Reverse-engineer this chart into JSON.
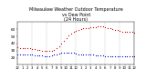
{
  "title": "Milwaukee Weather Outdoor Temperature\nvs Dew Point\n(24 Hours)",
  "title_fontsize": 3.5,
  "background_color": "#ffffff",
  "grid_color": "#999999",
  "temp_color": "#cc0000",
  "dew_color": "#0000cc",
  "xlim": [
    0,
    24
  ],
  "ylim": [
    10,
    70
  ],
  "yticks": [
    20,
    30,
    40,
    50,
    60
  ],
  "ytick_labels": [
    "20",
    "30",
    "40",
    "50",
    "60"
  ],
  "ytick_fontsize": 3.0,
  "xtick_fontsize": 2.8,
  "xtick_positions": [
    0,
    1,
    2,
    3,
    4,
    5,
    6,
    7,
    8,
    9,
    10,
    11,
    12,
    13,
    14,
    15,
    16,
    17,
    18,
    19,
    20,
    21,
    22,
    23,
    24
  ],
  "xtick_labels": [
    "12",
    "1",
    "2",
    "3",
    "4",
    "5",
    "6",
    "7",
    "8",
    "9",
    "10",
    "11",
    "12",
    "1",
    "2",
    "3",
    "4",
    "5",
    "6",
    "7",
    "8",
    "9",
    "10",
    "11",
    "12"
  ],
  "temp_x": [
    0,
    0.5,
    1,
    1.5,
    2,
    2.5,
    3,
    3.5,
    4,
    4.5,
    5,
    5.5,
    6,
    6.5,
    7,
    7.5,
    8,
    8.5,
    9,
    9.5,
    10,
    10.5,
    11,
    11.5,
    12,
    12.5,
    13,
    13.5,
    14,
    14.5,
    15,
    15.5,
    16,
    16.5,
    17,
    17.5,
    18,
    18.5,
    19,
    19.5,
    20,
    20.5,
    21,
    21.5,
    22,
    22.5,
    23,
    23.5,
    24
  ],
  "temp_y": [
    35,
    34,
    34,
    33,
    33,
    33,
    32,
    32,
    31,
    31,
    30,
    30,
    29,
    29,
    30,
    31,
    33,
    36,
    40,
    44,
    48,
    51,
    54,
    56,
    58,
    59,
    60,
    61,
    62,
    62,
    63,
    63,
    63,
    64,
    64,
    64,
    63,
    62,
    61,
    60,
    59,
    59,
    58,
    57,
    57,
    57,
    56,
    56,
    55
  ],
  "dew_x": [
    0,
    0.5,
    1,
    1.5,
    2,
    2.5,
    3,
    3.5,
    4,
    4.5,
    5,
    5.5,
    6,
    6.5,
    7,
    7.5,
    8,
    8.5,
    9,
    9.5,
    10,
    10.5,
    11,
    11.5,
    12,
    12.5,
    13,
    13.5,
    14,
    14.5,
    15,
    15.5,
    16,
    16.5,
    17,
    17.5,
    18,
    18.5,
    19,
    19.5,
    20,
    20.5,
    21,
    21.5,
    22,
    22.5,
    23,
    23.5,
    24
  ],
  "dew_y": [
    25,
    25,
    25,
    24,
    24,
    24,
    24,
    23,
    23,
    23,
    23,
    22,
    22,
    22,
    23,
    24,
    25,
    26,
    27,
    27,
    27,
    27,
    27,
    27,
    26,
    25,
    25,
    25,
    25,
    24,
    24,
    24,
    23,
    23,
    23,
    23,
    22,
    22,
    22,
    22,
    22,
    22,
    22,
    22,
    22,
    22,
    22,
    22,
    22
  ],
  "vgrid_x": [
    0,
    3,
    6,
    9,
    12,
    15,
    18,
    21,
    24
  ],
  "marker_size": 0.8,
  "spine_linewidth": 0.3
}
